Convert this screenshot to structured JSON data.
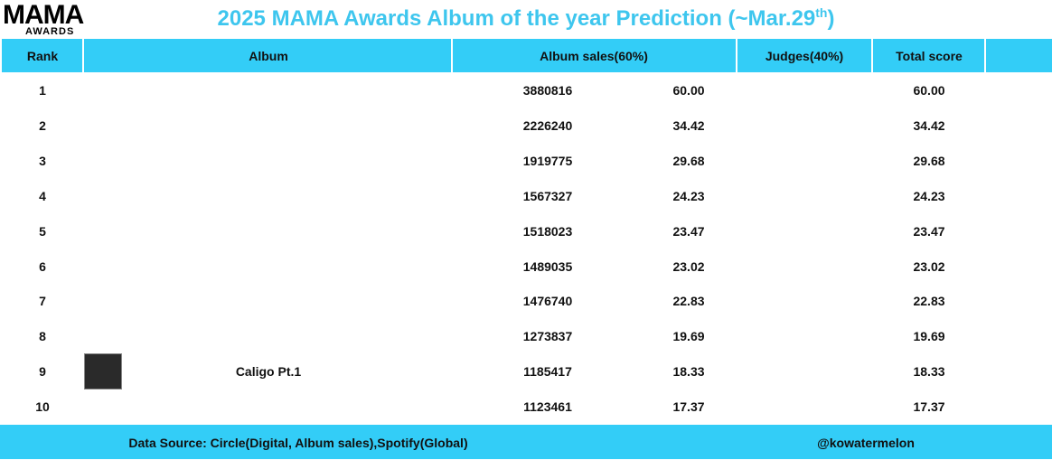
{
  "logo": {
    "top": "MAMA",
    "bottom": "AWARDS"
  },
  "title": {
    "main": "2025 MAMA Awards Album of the year Prediction (~Mar.29",
    "sup": "th",
    "end": ")"
  },
  "table": {
    "header": [
      "Rank",
      "Album",
      "Album sales(60%)",
      "Judges(40%)",
      "Total score"
    ],
    "rows": [
      {
        "rank": 1,
        "album": null,
        "sales": 3880816,
        "sales_score": "60.00",
        "total": "60.00"
      },
      {
        "rank": 2,
        "album": null,
        "sales": 2226240,
        "sales_score": "34.42",
        "total": "34.42"
      },
      {
        "rank": 3,
        "album": null,
        "sales": 1919775,
        "sales_score": "29.68",
        "total": "29.68"
      },
      {
        "rank": 4,
        "album": null,
        "sales": 1567327,
        "sales_score": "24.23",
        "total": "24.23"
      },
      {
        "rank": 5,
        "album": null,
        "sales": 1518023,
        "sales_score": "23.47",
        "total": "23.47"
      },
      {
        "rank": 6,
        "album": null,
        "sales": 1489035,
        "sales_score": "23.02",
        "total": "23.02"
      },
      {
        "rank": 7,
        "album": null,
        "sales": 1476740,
        "sales_score": "22.83",
        "total": "22.83"
      },
      {
        "rank": 8,
        "album": null,
        "sales": 1273837,
        "sales_score": "19.69",
        "total": "19.69"
      },
      {
        "rank": 9,
        "album": "Caligo Pt.1",
        "sales": 1185417,
        "sales_score": "18.33",
        "total": "18.33"
      },
      {
        "rank": 10,
        "album": null,
        "sales": 1123461,
        "sales_score": "17.37",
        "total": "17.37"
      }
    ]
  },
  "footer": {
    "source": "Data Source: Circle(Digital, Album sales),Spotify(Global)",
    "credit": "@kowatermelon"
  }
}
